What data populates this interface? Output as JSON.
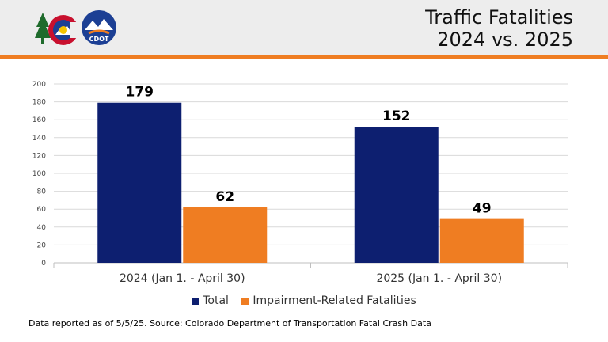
{
  "header": {
    "title_line1": "Traffic Fatalities",
    "title_line2": "2024 vs. 2025",
    "logo_text": "CDOT"
  },
  "colors": {
    "total": "#0d1f70",
    "impairment": "#ef7d22",
    "accent_bar": "#ef7d22",
    "header_bg": "#ededed"
  },
  "chart_data": {
    "type": "bar",
    "categories": [
      "2024 (Jan 1. - April 30)",
      "2025 (Jan 1. - April 30)"
    ],
    "series": [
      {
        "name": "Total",
        "values": [
          179,
          152
        ]
      },
      {
        "name": "Impairment-Related Fatalities",
        "values": [
          62,
          49
        ]
      }
    ],
    "ylim": [
      0,
      200
    ],
    "yticks": [
      0,
      20,
      40,
      60,
      80,
      100,
      120,
      140,
      160,
      180,
      200
    ],
    "grid": true,
    "legend": "bottom-center",
    "title": "Traffic Fatalities 2024 vs. 2025"
  },
  "footnote": "Data reported as of 5/5/25. Source: Colorado Department of Transportation Fatal Crash Data"
}
